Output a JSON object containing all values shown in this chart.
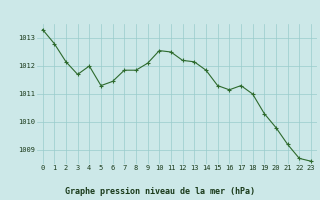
{
  "hours": [
    0,
    1,
    2,
    3,
    4,
    5,
    6,
    7,
    8,
    9,
    10,
    11,
    12,
    13,
    14,
    15,
    16,
    17,
    18,
    19,
    20,
    21,
    22,
    23
  ],
  "pressure": [
    1013.3,
    1012.8,
    1012.15,
    1011.7,
    1012.0,
    1011.3,
    1011.45,
    1011.85,
    1011.85,
    1012.1,
    1012.55,
    1012.5,
    1012.2,
    1012.15,
    1011.85,
    1011.3,
    1011.15,
    1011.3,
    1011.0,
    1010.3,
    1009.8,
    1009.2,
    1008.7,
    1008.6
  ],
  "line_color": "#2d6a2d",
  "marker_color": "#2d6a2d",
  "bg_color": "#cce8e8",
  "grid_color": "#99cccc",
  "title": "Graphe pression niveau de la mer (hPa)",
  "title_color": "#1a3a1a",
  "ylim_min": 1008.5,
  "ylim_max": 1013.5,
  "yticks": [
    1009,
    1010,
    1011,
    1012,
    1013
  ],
  "xticks": [
    0,
    1,
    2,
    3,
    4,
    5,
    6,
    7,
    8,
    9,
    10,
    11,
    12,
    13,
    14,
    15,
    16,
    17,
    18,
    19,
    20,
    21,
    22,
    23
  ],
  "font_size_title": 6.0,
  "font_size_ticks": 5.0
}
